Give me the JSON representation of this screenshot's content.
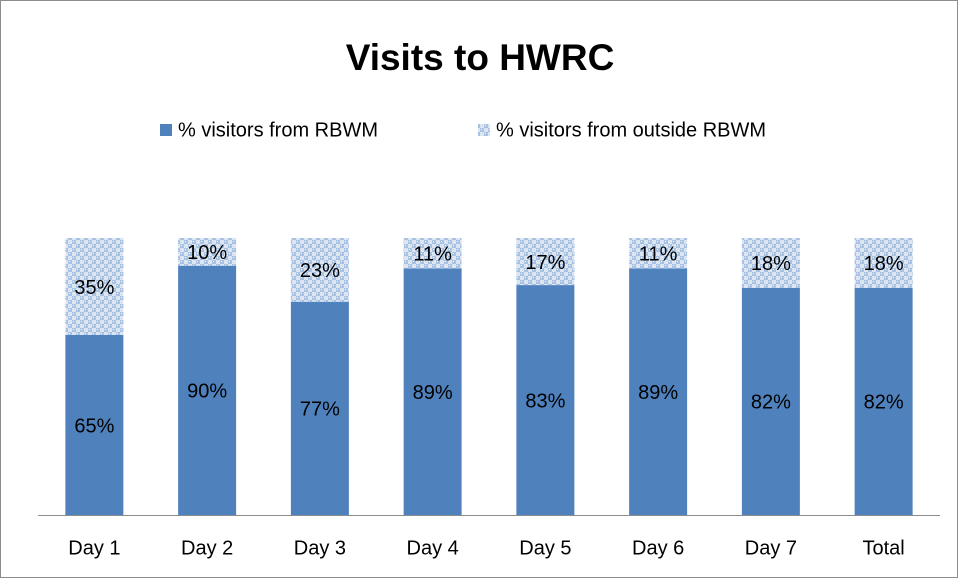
{
  "chart_data": {
    "type": "stacked_bar",
    "title": "Visits to HWRC",
    "categories": [
      "Day 1",
      "Day 2",
      "Day 3",
      "Day 4",
      "Day 5",
      "Day 6",
      "Day 7",
      "Total"
    ],
    "series": [
      {
        "name": "% visitors from RBWM",
        "color": "#4f81bd",
        "values": [
          65,
          90,
          77,
          89,
          83,
          89,
          82,
          82
        ],
        "value_labels": [
          "65%",
          "90%",
          "77%",
          "89%",
          "83%",
          "89%",
          "82%",
          "82%"
        ]
      },
      {
        "name": "% visitors from outside RBWM",
        "color": "#a9c2e2",
        "values": [
          35,
          10,
          23,
          11,
          17,
          11,
          18,
          18
        ],
        "value_labels": [
          "35%",
          "10%",
          "23%",
          "11%",
          "17%",
          "11%",
          "18%",
          "18%"
        ]
      }
    ],
    "ylim": [
      0,
      100
    ],
    "legend": "top"
  }
}
